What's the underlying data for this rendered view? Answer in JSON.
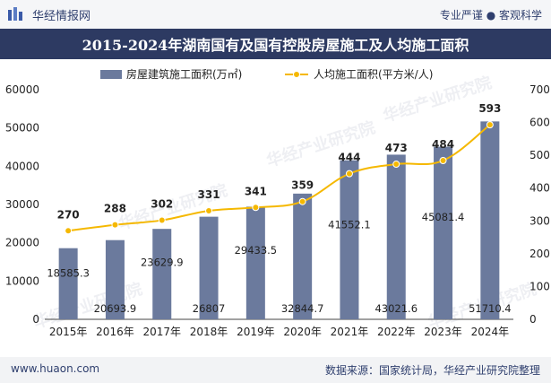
{
  "header": {
    "brand": "华经情报网",
    "tagline": "专业严谨 ● 客观科学"
  },
  "footer": {
    "website": "www.huaon.com",
    "source": "数据来源：国家统计局，华经产业研究院整理"
  },
  "colors": {
    "bar": "#6b7a9d",
    "line": "#f5b800",
    "title_bg": "#2d3a62"
  },
  "chart_data": {
    "type": "bar+line",
    "title": "2015-2024年湖南国有及国有控股房屋施工及人均施工面积",
    "categories": [
      "2015年",
      "2016年",
      "2017年",
      "2018年",
      "2019年",
      "2020年",
      "2021年",
      "2022年",
      "2023年",
      "2024年"
    ],
    "series": [
      {
        "name": "房屋建筑施工面积(万㎡)",
        "type": "bar",
        "axis": "left",
        "values": [
          18585.3,
          20693.9,
          23629.9,
          26807,
          29433.5,
          32844.7,
          41552.1,
          43021.6,
          45081.4,
          51710.4
        ],
        "labels": [
          "18585.3",
          "20693.9",
          "23629.9",
          "26807",
          "29433.5",
          "32844.7",
          "41552.1",
          "43021.6",
          "45081.4",
          "51710.4"
        ]
      },
      {
        "name": "人均施工面积(平方米/人)",
        "type": "line",
        "axis": "right",
        "values": [
          270,
          288,
          302,
          331,
          341,
          359,
          444,
          473,
          484,
          593
        ],
        "labels": [
          "270",
          "288",
          "302",
          "331",
          "341",
          "359",
          "444",
          "473",
          "484",
          "593"
        ]
      }
    ],
    "y_left": {
      "min": 0,
      "max": 60000,
      "ticks": [
        0,
        10000,
        20000,
        30000,
        40000,
        50000,
        60000
      ],
      "tick_labels": [
        "0",
        "10000",
        "20000",
        "30000",
        "40000",
        "50000",
        "60000"
      ]
    },
    "y_right": {
      "min": 0,
      "max": 700,
      "ticks": [
        0,
        100,
        200,
        300,
        400,
        500,
        600,
        700
      ],
      "tick_labels": [
        "0",
        "100",
        "200",
        "300",
        "400",
        "500",
        "600",
        "700"
      ]
    },
    "legend": "top-center"
  }
}
